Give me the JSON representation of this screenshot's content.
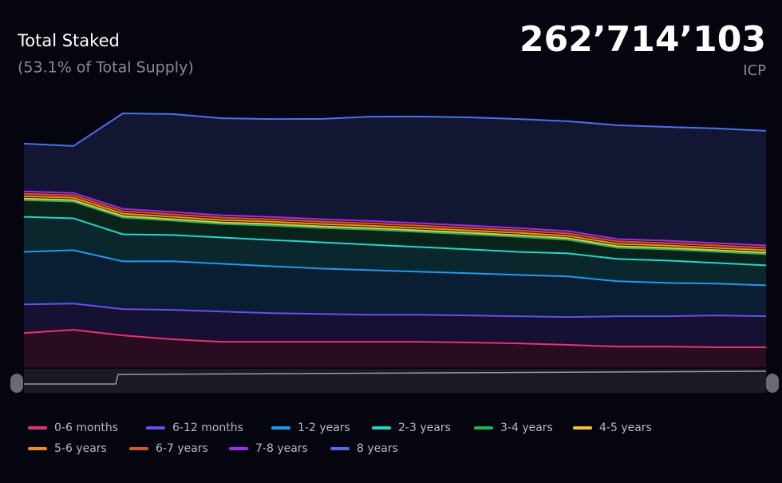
{
  "chart_data": {
    "type": "stacked-area",
    "title": "Total Staked",
    "subtitle": "(53.1% of Total Supply)",
    "total": "262’714’103",
    "unit": "ICP",
    "categories": [
      null,
      null,
      null,
      null,
      null,
      null,
      null,
      null,
      null,
      null,
      null,
      null,
      null,
      null,
      null,
      null
    ],
    "series": [
      {
        "name": "0-6 months",
        "color": "#e8307a",
        "values": [
          37.4,
          40.9,
          34.8,
          30.5,
          27.8,
          27.8,
          27.8,
          27.8,
          27.8,
          27.0,
          26.1,
          24.4,
          22.6,
          22.6,
          21.8,
          21.8
        ]
      },
      {
        "name": "6-12 months",
        "color": "#6a4ef0",
        "values": [
          31.3,
          28.7,
          28.7,
          32.2,
          33.1,
          31.3,
          30.5,
          29.6,
          29.6,
          29.6,
          29.6,
          30.5,
          33.1,
          33.1,
          34.8,
          33.9
        ]
      },
      {
        "name": "1-2 years",
        "color": "#1e9af0",
        "values": [
          57.4,
          58.3,
          52.2,
          53.1,
          52.2,
          51.3,
          49.6,
          48.7,
          47.0,
          46.1,
          45.2,
          44.4,
          38.3,
          36.5,
          34.8,
          33.9
        ]
      },
      {
        "name": "2-3 years",
        "color": "#22d8c8",
        "values": [
          38.3,
          34.8,
          29.6,
          28.7,
          28.7,
          28.7,
          28.7,
          27.8,
          27.0,
          26.1,
          25.2,
          25.2,
          24.4,
          24.4,
          22.6,
          21.8
        ]
      },
      {
        "name": "3-4 years",
        "color": "#1db954",
        "values": [
          18.3,
          18.3,
          18.3,
          15.7,
          14.8,
          15.7,
          15.7,
          16.5,
          16.5,
          16.5,
          16.5,
          14.8,
          12.2,
          12.2,
          12.2,
          12.2
        ]
      },
      {
        "name": "4-5 years",
        "color": "#f5c431",
        "values": [
          1.7,
          1.7,
          1.7,
          1.7,
          1.7,
          1.7,
          1.7,
          1.7,
          1.7,
          1.7,
          1.7,
          1.7,
          1.7,
          1.7,
          1.7,
          1.7
        ]
      },
      {
        "name": "5-6 years",
        "color": "#f58a2a",
        "values": [
          2.6,
          2.6,
          2.6,
          2.6,
          2.6,
          2.6,
          2.6,
          2.6,
          2.6,
          2.6,
          2.6,
          2.6,
          2.6,
          2.6,
          2.6,
          2.6
        ]
      },
      {
        "name": "6-7 years",
        "color": "#d9542c",
        "values": [
          2.6,
          2.6,
          2.6,
          2.6,
          2.6,
          2.6,
          2.6,
          2.6,
          2.6,
          2.6,
          2.6,
          2.6,
          2.6,
          2.6,
          2.6,
          2.6
        ]
      },
      {
        "name": "7-8 years",
        "color": "#9b30e8",
        "values": [
          2.6,
          2.6,
          2.6,
          2.6,
          2.6,
          2.6,
          2.6,
          2.6,
          2.6,
          2.6,
          2.6,
          2.6,
          2.6,
          2.6,
          2.6,
          2.6
        ]
      },
      {
        "name": "8 years",
        "color": "#4f6ef0",
        "values": [
          52.2,
          51.3,
          104.4,
          107.0,
          106.1,
          107.0,
          109.6,
          114.0,
          116.6,
          118.3,
          119.2,
          120.1,
          124.4,
          124.4,
          125.3,
          125.3
        ]
      }
    ]
  }
}
